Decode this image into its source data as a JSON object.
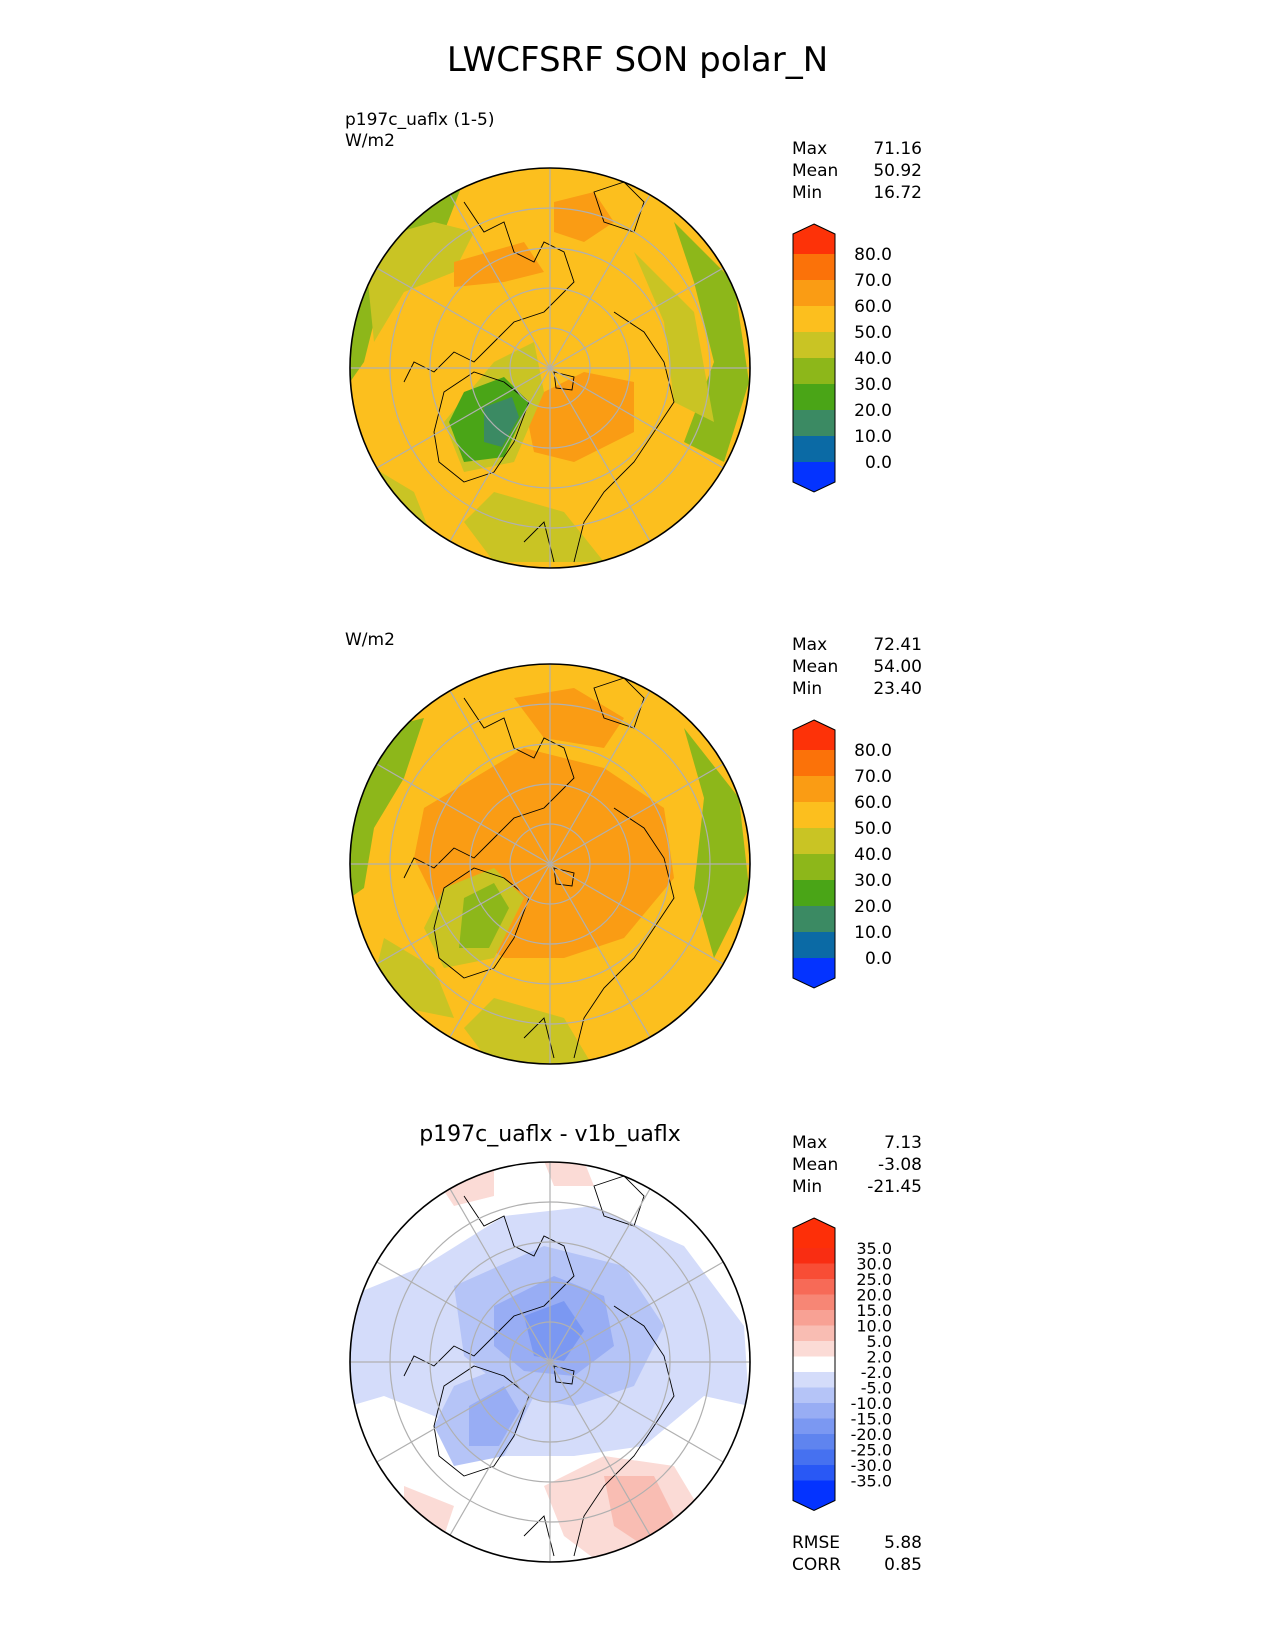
{
  "title": "LWCFSRF SON polar_N",
  "panels": [
    {
      "label_line1": "p197c_uaflx (1-5)",
      "label_line2": "W/m2",
      "stats": {
        "max_label": "Max",
        "max": "71.16",
        "mean_label": "Mean",
        "mean": "50.92",
        "min_label": "Min",
        "min": "16.72"
      }
    },
    {
      "label_line1": "",
      "label_line2": "W/m2",
      "stats": {
        "max_label": "Max",
        "max": "72.41",
        "mean_label": "Mean",
        "mean": "54.00",
        "min_label": "Min",
        "min": "23.40"
      }
    },
    {
      "title": "p197c_uaflx - v1b_uaflx",
      "stats": {
        "max_label": "Max",
        "max": "7.13",
        "mean_label": "Mean",
        "mean": "-3.08",
        "min_label": "Min",
        "min": "-21.45"
      },
      "rmse_label": "RMSE",
      "rmse": "5.88",
      "corr_label": "CORR",
      "corr": "0.85"
    }
  ],
  "colorbar_abs": {
    "ticks": [
      "80.0",
      "70.0",
      "60.0",
      "50.0",
      "40.0",
      "30.0",
      "20.0",
      "10.0",
      "0.0"
    ],
    "colors": [
      "#0433ff",
      "#0b6aa5",
      "#3b8a63",
      "#4aa517",
      "#8db71a",
      "#c9c424",
      "#fcbf1e",
      "#fa9c14",
      "#fb7209",
      "#fd3208"
    ]
  },
  "colorbar_diff": {
    "ticks": [
      "35.0",
      "30.0",
      "25.0",
      "20.0",
      "15.0",
      "10.0",
      "5.0",
      "2.0",
      "-2.0",
      "-5.0",
      "-10.0",
      "-15.0",
      "-20.0",
      "-25.0",
      "-30.0",
      "-35.0"
    ],
    "colors": [
      "#0433ff",
      "#2958f5",
      "#4671f0",
      "#5f84ef",
      "#7b98f2",
      "#98adf4",
      "#b5c4f7",
      "#d4dcfa",
      "#ffffff",
      "#fbdbd6",
      "#f9bdb3",
      "#f8a194",
      "#f78675",
      "#f76a57",
      "#f84d35",
      "#f92d12",
      "#fd2f08"
    ]
  }
}
